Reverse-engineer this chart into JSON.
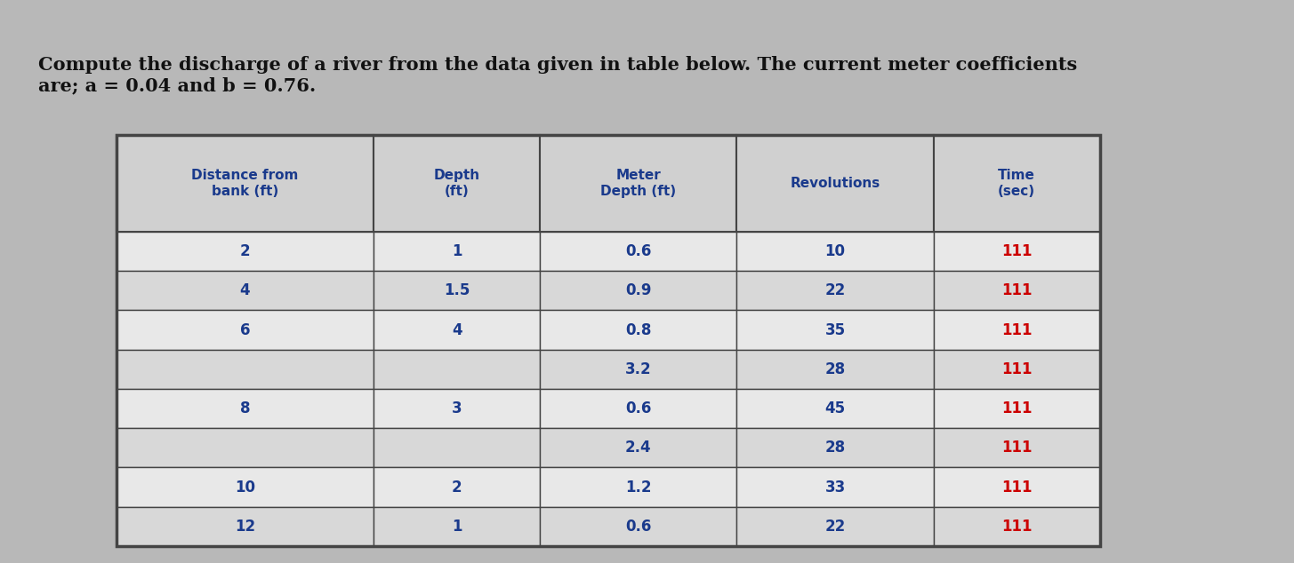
{
  "title_line1": "Compute the discharge of a river from the data given in table below. The current meter coefficients",
  "title_line2": "are; a = 0.04 and b = 0.76.",
  "title_fontsize": 15,
  "headers": [
    "Distance from\nbank (ft)",
    "Depth\n(ft)",
    "Meter\nDepth (ft)",
    "Revolutions",
    "Time\n(sec)"
  ],
  "col_widths": [
    1.7,
    1.1,
    1.3,
    1.3,
    1.1
  ],
  "rows": [
    [
      "2",
      "1",
      "0.6",
      "10",
      "111"
    ],
    [
      "4",
      "1.5",
      "0.9",
      "22",
      "111"
    ],
    [
      "6",
      "4",
      "0.8",
      "35",
      "111"
    ],
    [
      "",
      "",
      "3.2",
      "28",
      "111"
    ],
    [
      "8",
      "3",
      "0.6",
      "45",
      "111"
    ],
    [
      "",
      "",
      "2.4",
      "28",
      "111"
    ],
    [
      "10",
      "2",
      "1.2",
      "33",
      "111"
    ],
    [
      "12",
      "1",
      "0.6",
      "22",
      "111"
    ]
  ],
  "border_color": "#444444",
  "text_color_header": "#1a3a8c",
  "text_color_rows": "#1a3a8c",
  "time_color": "#cc0000",
  "figure_bg": "#b8b8b8",
  "header_bg": "#d0d0d0",
  "row_bg_even": "#e8e8e8",
  "row_bg_odd": "#d8d8d8"
}
